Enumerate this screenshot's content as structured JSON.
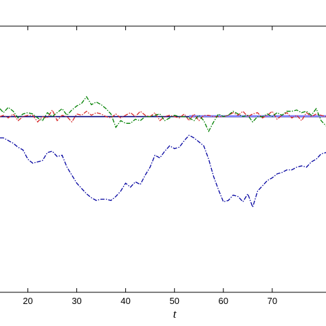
{
  "chart_data": {
    "type": "line",
    "xlabel": "t",
    "ylabel": "",
    "title": "",
    "x_ticks": [
      20,
      30,
      40,
      50,
      60,
      70
    ],
    "xlim": [
      14.3,
      81
    ],
    "ylim": [
      0,
      1
    ],
    "grid": false,
    "series": [
      {
        "style": "solid",
        "color": "#00007f",
        "x": [
          14.3,
          81
        ],
        "y": [
          0.66,
          0.66
        ]
      },
      {
        "style": "solid",
        "color": "#8080ff",
        "x": [
          53,
          81
        ],
        "y": [
          0.662,
          0.662
        ]
      },
      {
        "style": "dash-dot",
        "color": "#d62728",
        "x": [
          14.3,
          15,
          16,
          17,
          18,
          19,
          20,
          21,
          22,
          23,
          24,
          25,
          26,
          27,
          28,
          29,
          30,
          31,
          32,
          33,
          34,
          35,
          36,
          37,
          38,
          39,
          40,
          41,
          42,
          43,
          44,
          45,
          46,
          47,
          48,
          49,
          50,
          51,
          52,
          53,
          54,
          55,
          56,
          57,
          58,
          59,
          60,
          61,
          62,
          63,
          64,
          65,
          66,
          67,
          68,
          69,
          70,
          71,
          72,
          73,
          74,
          75,
          76,
          77,
          78,
          79,
          80,
          81
        ],
        "y": [
          0.66,
          0.665,
          0.655,
          0.67,
          0.645,
          0.66,
          0.665,
          0.665,
          0.64,
          0.66,
          0.655,
          0.685,
          0.645,
          0.665,
          0.66,
          0.64,
          0.67,
          0.665,
          0.68,
          0.665,
          0.675,
          0.67,
          0.66,
          0.655,
          0.67,
          0.655,
          0.665,
          0.675,
          0.66,
          0.68,
          0.665,
          0.66,
          0.675,
          0.645,
          0.66,
          0.665,
          0.66,
          0.655,
          0.67,
          0.645,
          0.67,
          0.645,
          0.665,
          0.665,
          0.66,
          0.66,
          0.66,
          0.665,
          0.675,
          0.665,
          0.68,
          0.66,
          0.67,
          0.675,
          0.655,
          0.665,
          0.68,
          0.65,
          0.665,
          0.675,
          0.655,
          0.665,
          0.645,
          0.675,
          0.66,
          0.67,
          0.665,
          0.66
        ]
      },
      {
        "style": "dash-dot",
        "color": "#008000",
        "x": [
          14.3,
          15,
          16,
          17,
          18,
          19,
          20,
          21,
          22,
          23,
          24,
          25,
          26,
          27,
          28,
          29,
          30,
          31,
          32,
          33,
          34,
          35,
          36,
          37,
          38,
          39,
          40,
          41,
          42,
          43,
          44,
          45,
          46,
          47,
          48,
          49,
          50,
          51,
          52,
          53,
          54,
          55,
          56,
          57,
          58,
          59,
          60,
          61,
          62,
          63,
          64,
          65,
          66,
          67,
          68,
          69,
          70,
          71,
          72,
          73,
          74,
          75,
          76,
          77,
          78,
          79,
          80,
          81
        ],
        "y": [
          0.69,
          0.675,
          0.695,
          0.68,
          0.655,
          0.67,
          0.675,
          0.67,
          0.655,
          0.645,
          0.675,
          0.66,
          0.675,
          0.69,
          0.665,
          0.685,
          0.7,
          0.71,
          0.735,
          0.705,
          0.715,
          0.705,
          0.69,
          0.67,
          0.62,
          0.645,
          0.635,
          0.635,
          0.65,
          0.645,
          0.66,
          0.66,
          0.665,
          0.67,
          0.645,
          0.655,
          0.665,
          0.66,
          0.66,
          0.655,
          0.645,
          0.665,
          0.645,
          0.605,
          0.64,
          0.67,
          0.66,
          0.665,
          0.68,
          0.67,
          0.66,
          0.665,
          0.64,
          0.66,
          0.66,
          0.67,
          0.66,
          0.675,
          0.665,
          0.68,
          0.68,
          0.685,
          0.675,
          0.68,
          0.665,
          0.69,
          0.645,
          0.625
        ]
      },
      {
        "style": "dash-dot",
        "color": "#00009f",
        "x": [
          14.3,
          15,
          16,
          17,
          18,
          19,
          20,
          21,
          22,
          23,
          24,
          25,
          26,
          27,
          28,
          29,
          30,
          31,
          32,
          33,
          34,
          35,
          36,
          37,
          38,
          39,
          40,
          41,
          42,
          43,
          44,
          45,
          46,
          47,
          48,
          49,
          50,
          51,
          52,
          53,
          54,
          55,
          56,
          57,
          58,
          59,
          60,
          61,
          62,
          63,
          64,
          65,
          66,
          67,
          68,
          69,
          70,
          71,
          72,
          73,
          74,
          75,
          76,
          77,
          78,
          79,
          80,
          81
        ],
        "y": [
          0.58,
          0.58,
          0.57,
          0.56,
          0.545,
          0.535,
          0.5,
          0.485,
          0.49,
          0.495,
          0.525,
          0.53,
          0.51,
          0.515,
          0.47,
          0.44,
          0.41,
          0.39,
          0.37,
          0.355,
          0.345,
          0.35,
          0.35,
          0.345,
          0.36,
          0.38,
          0.41,
          0.395,
          0.415,
          0.405,
          0.44,
          0.47,
          0.515,
          0.505,
          0.53,
          0.55,
          0.54,
          0.545,
          0.57,
          0.59,
          0.58,
          0.565,
          0.55,
          0.5,
          0.435,
          0.385,
          0.34,
          0.345,
          0.365,
          0.36,
          0.34,
          0.37,
          0.32,
          0.38,
          0.4,
          0.42,
          0.43,
          0.445,
          0.45,
          0.46,
          0.46,
          0.47,
          0.475,
          0.47,
          0.49,
          0.5,
          0.52,
          0.525
        ]
      }
    ]
  }
}
